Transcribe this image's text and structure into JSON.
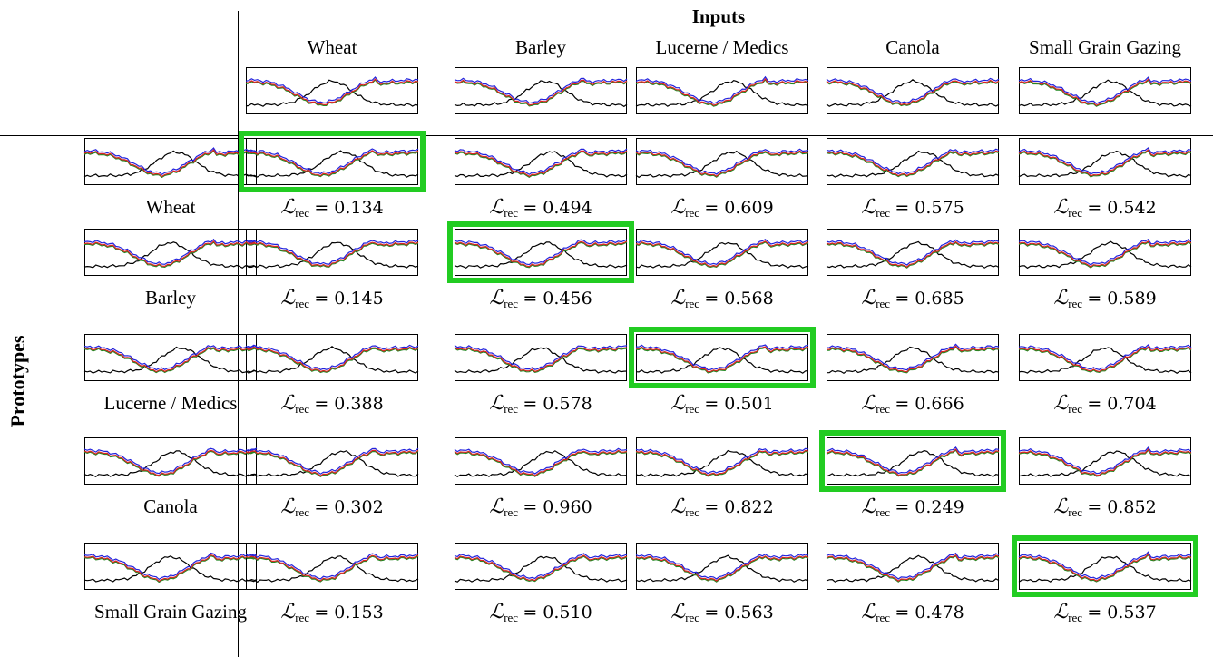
{
  "header": {
    "inputs_title": "Inputs",
    "prototypes_title": "Prototypes"
  },
  "columns": [
    "Wheat",
    "Barley",
    "Lucerne / Medics",
    "Canola",
    "Small Grain Gazing"
  ],
  "rows": [
    "Wheat",
    "Barley",
    "Lucerne / Medics",
    "Canola",
    "Small Grain Gazing"
  ],
  "loss_label": "ℒ",
  "loss_sub": "rec",
  "losses": [
    [
      "= 0.134",
      "= 0.494",
      "= 0.609",
      "= 0.575",
      "= 0.542"
    ],
    [
      "= 0.145",
      "= 0.456",
      "= 0.568",
      "= 0.685",
      "= 0.589"
    ],
    [
      "= 0.388",
      "= 0.578",
      "= 0.501",
      "= 0.666",
      "= 0.704"
    ],
    [
      "= 0.302",
      "= 0.960",
      "= 0.822",
      "= 0.249",
      "= 0.852"
    ],
    [
      "= 0.153",
      "= 0.510",
      "= 0.563",
      "= 0.478",
      "= 0.537"
    ]
  ],
  "highlighted_diagonal": true,
  "series_colors": {
    "blue": "#2222dd",
    "green": "#228822",
    "red": "#dd2222",
    "black": "#000000",
    "highlight": "#22cc22"
  }
}
